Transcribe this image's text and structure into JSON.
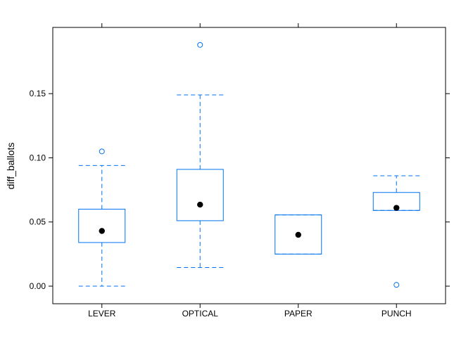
{
  "chart_data": {
    "type": "boxplot",
    "ylabel": "diff_ballots",
    "xlabel": "",
    "title": "",
    "ylim": [
      -0.0137,
      0.2016
    ],
    "yticks": [
      0.0,
      0.05,
      0.1,
      0.15
    ],
    "ytick_labels": [
      "0.00",
      "0.05",
      "0.10",
      "0.15"
    ],
    "categories": [
      "LEVER",
      "OPTICAL",
      "PAPER",
      "PUNCH"
    ],
    "boxes": [
      {
        "category": "LEVER",
        "whisker_low": 0.0,
        "q1": 0.034,
        "median": 0.043,
        "q3": 0.06,
        "whisker_high": 0.094,
        "outliers": [
          0.105
        ]
      },
      {
        "category": "OPTICAL",
        "whisker_low": 0.0145,
        "q1": 0.051,
        "median": 0.0635,
        "q3": 0.091,
        "whisker_high": 0.149,
        "outliers": [
          0.188
        ]
      },
      {
        "category": "PAPER",
        "whisker_low": 0.025,
        "q1": 0.025,
        "median": 0.04,
        "q3": 0.0555,
        "whisker_high": 0.0555,
        "outliers": []
      },
      {
        "category": "PUNCH",
        "whisker_low": 0.059,
        "q1": 0.059,
        "median": 0.061,
        "q3": 0.073,
        "whisker_high": 0.086,
        "outliers": [
          0.001
        ]
      }
    ],
    "colors": {
      "box": "#0072F0",
      "whisker": "#0072F0",
      "median_dot": "#000000",
      "outlier": "#0072F0",
      "frame": "#000000"
    },
    "grid": false,
    "legend": "none"
  }
}
